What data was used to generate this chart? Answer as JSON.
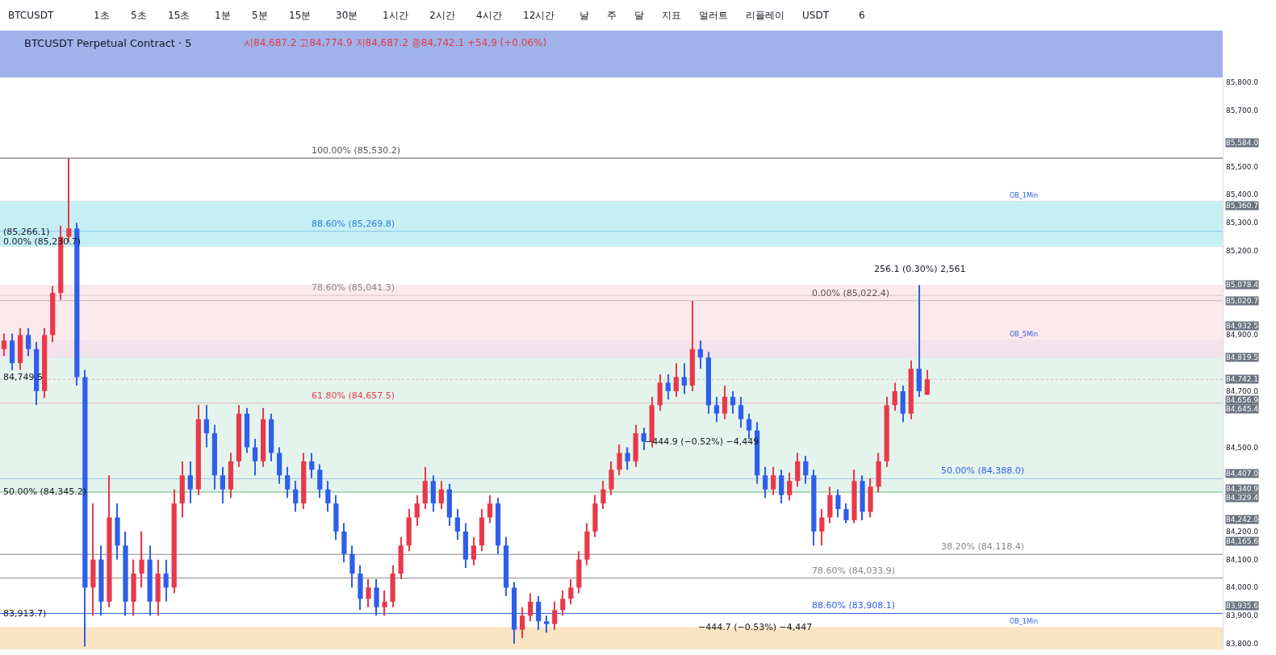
{
  "chart_data": {
    "type": "candlestick",
    "title": "BTCUSDT Perpetual Contract · 5",
    "subtitle": "시84,687.2 고84,774.9 저84,687.2 종84,742.1 +54.9 (+0.06%)",
    "categories": [
      null,
      null,
      null,
      null,
      null,
      null,
      null,
      null,
      null,
      null,
      null,
      null,
      null,
      null,
      null,
      null,
      null,
      null,
      null,
      null,
      null,
      null,
      null,
      null,
      null,
      null,
      null,
      null,
      null,
      null,
      null,
      null,
      null,
      null,
      null,
      null,
      null,
      null,
      null,
      null,
      null,
      null,
      null,
      null,
      null,
      null,
      null,
      null,
      null,
      null,
      null,
      null,
      null,
      null,
      null,
      null,
      null,
      null,
      null,
      null,
      null,
      null,
      null,
      null,
      null,
      null,
      null,
      null,
      null,
      null,
      null,
      null,
      null,
      null,
      null,
      null,
      null,
      null,
      null,
      null,
      null,
      null,
      null,
      null,
      null,
      null,
      null,
      null,
      null,
      null,
      null,
      null,
      null,
      null,
      null,
      null,
      null,
      null,
      null,
      null,
      null,
      null,
      null,
      null,
      null,
      null,
      null,
      null,
      null,
      null,
      null,
      null,
      null,
      null,
      null,
      null,
      null,
      null,
      null,
      null,
      null,
      null,
      null,
      null,
      null,
      null,
      null,
      null,
      null,
      null,
      null,
      null,
      null,
      null,
      null,
      null,
      null,
      null,
      null,
      null,
      null,
      null,
      null,
      null,
      null,
      null,
      null,
      null,
      null,
      null,
      null
    ],
    "ohlc": [
      [
        84850,
        84905,
        84825,
        84880
      ],
      [
        84880,
        84905,
        84775,
        84800
      ],
      [
        84800,
        84925,
        84775,
        84900
      ],
      [
        84900,
        84925,
        84825,
        84850
      ],
      [
        84850,
        84875,
        84650,
        84700
      ],
      [
        84700,
        84925,
        84675,
        84900
      ],
      [
        84900,
        85075,
        84875,
        85050
      ],
      [
        85050,
        85290,
        85025,
        85250
      ],
      [
        85250,
        85530,
        85230,
        85280
      ],
      [
        85280,
        85300,
        84720,
        84750
      ],
      [
        84750,
        84775,
        83790,
        84000
      ],
      [
        84000,
        84300,
        83900,
        84100
      ],
      [
        84100,
        84150,
        83900,
        83950
      ],
      [
        83950,
        84400,
        83930,
        84250
      ],
      [
        84250,
        84300,
        84100,
        84150
      ],
      [
        84150,
        84200,
        83900,
        83950
      ],
      [
        83950,
        84100,
        83900,
        84050
      ],
      [
        84050,
        84200,
        84000,
        84100
      ],
      [
        84100,
        84150,
        83900,
        83950
      ],
      [
        83950,
        84100,
        83900,
        84050
      ],
      [
        84050,
        84100,
        83950,
        84000
      ],
      [
        84000,
        84350,
        83980,
        84300
      ],
      [
        84300,
        84450,
        84250,
        84400
      ],
      [
        84400,
        84450,
        84300,
        84350
      ],
      [
        84350,
        84650,
        84330,
        84600
      ],
      [
        84600,
        84650,
        84500,
        84550
      ],
      [
        84550,
        84580,
        84350,
        84400
      ],
      [
        84400,
        84430,
        84300,
        84350
      ],
      [
        84350,
        84480,
        84320,
        84450
      ],
      [
        84450,
        84650,
        84430,
        84620
      ],
      [
        84620,
        84640,
        84480,
        84500
      ],
      [
        84500,
        84530,
        84400,
        84450
      ],
      [
        84450,
        84640,
        84430,
        84600
      ],
      [
        84600,
        84620,
        84450,
        84480
      ],
      [
        84480,
        84500,
        84370,
        84400
      ],
      [
        84400,
        84430,
        84320,
        84350
      ],
      [
        84350,
        84380,
        84270,
        84300
      ],
      [
        84300,
        84480,
        84280,
        84450
      ],
      [
        84450,
        84480,
        84390,
        84420
      ],
      [
        84420,
        84440,
        84320,
        84350
      ],
      [
        84350,
        84380,
        84270,
        84300
      ],
      [
        84300,
        84330,
        84170,
        84200
      ],
      [
        84200,
        84230,
        84090,
        84120
      ],
      [
        84120,
        84150,
        84000,
        84050
      ],
      [
        84050,
        84080,
        83920,
        83960
      ],
      [
        83960,
        84030,
        83930,
        84000
      ],
      [
        84000,
        84030,
        83900,
        83930
      ],
      [
        83930,
        83990,
        83900,
        83950
      ],
      [
        83950,
        84080,
        83930,
        84050
      ],
      [
        84050,
        84180,
        84030,
        84150
      ],
      [
        84150,
        84280,
        84130,
        84250
      ],
      [
        84250,
        84330,
        84220,
        84300
      ],
      [
        84300,
        84430,
        84280,
        84380
      ],
      [
        84380,
        84400,
        84270,
        84300
      ],
      [
        84300,
        84380,
        84280,
        84350
      ],
      [
        84350,
        84370,
        84220,
        84250
      ],
      [
        84250,
        84280,
        84170,
        84200
      ],
      [
        84200,
        84230,
        84070,
        84100
      ],
      [
        84100,
        84180,
        84080,
        84150
      ],
      [
        84150,
        84280,
        84130,
        84250
      ],
      [
        84250,
        84330,
        84230,
        84300
      ],
      [
        84300,
        84320,
        84120,
        84150
      ],
      [
        84150,
        84180,
        83970,
        84000
      ],
      [
        84000,
        84020,
        83800,
        83850
      ],
      [
        83850,
        83930,
        83820,
        83900
      ],
      [
        83900,
        83980,
        83880,
        83950
      ],
      [
        83950,
        83970,
        83850,
        83880
      ],
      [
        83880,
        83900,
        83840,
        83870
      ],
      [
        83870,
        83950,
        83850,
        83920
      ],
      [
        83920,
        83990,
        83900,
        83960
      ],
      [
        83960,
        84030,
        83940,
        84000
      ],
      [
        84000,
        84130,
        83980,
        84100
      ],
      [
        84100,
        84230,
        84080,
        84200
      ],
      [
        84200,
        84330,
        84180,
        84300
      ],
      [
        84300,
        84380,
        84280,
        84350
      ],
      [
        84350,
        84450,
        84330,
        84420
      ],
      [
        84420,
        84510,
        84400,
        84480
      ],
      [
        84480,
        84500,
        84420,
        84450
      ],
      [
        84450,
        84580,
        84430,
        84550
      ],
      [
        84550,
        84570,
        84490,
        84520
      ],
      [
        84520,
        84680,
        84500,
        84650
      ],
      [
        84650,
        84760,
        84630,
        84730
      ],
      [
        84730,
        84760,
        84670,
        84700
      ],
      [
        84700,
        84800,
        84680,
        84750
      ],
      [
        84750,
        84800,
        84690,
        84720
      ],
      [
        84720,
        85022,
        84700,
        84850
      ],
      [
        84850,
        84880,
        84780,
        84820
      ],
      [
        84820,
        84840,
        84620,
        84650
      ],
      [
        84650,
        84680,
        84590,
        84620
      ],
      [
        84620,
        84720,
        84600,
        84680
      ],
      [
        84680,
        84700,
        84620,
        84650
      ],
      [
        84650,
        84680,
        84570,
        84600
      ],
      [
        84600,
        84620,
        84530,
        84560
      ],
      [
        84560,
        84590,
        84370,
        84400
      ],
      [
        84400,
        84430,
        84320,
        84350
      ],
      [
        84350,
        84430,
        84330,
        84400
      ],
      [
        84400,
        84420,
        84300,
        84330
      ],
      [
        84330,
        84410,
        84310,
        84380
      ],
      [
        84380,
        84480,
        84360,
        84450
      ],
      [
        84450,
        84470,
        84370,
        84400
      ],
      [
        84400,
        84420,
        84150,
        84200
      ],
      [
        84200,
        84280,
        84150,
        84250
      ],
      [
        84250,
        84360,
        84230,
        84330
      ],
      [
        84330,
        84350,
        84250,
        84280
      ],
      [
        84280,
        84300,
        84230,
        84240
      ],
      [
        84240,
        84420,
        84230,
        84380
      ],
      [
        84380,
        84400,
        84240,
        84270
      ],
      [
        84270,
        84390,
        84250,
        84360
      ],
      [
        84360,
        84480,
        84340,
        84450
      ],
      [
        84450,
        84680,
        84430,
        84650
      ],
      [
        84650,
        84730,
        84630,
        84700
      ],
      [
        84700,
        84720,
        84590,
        84620
      ],
      [
        84620,
        84810,
        84600,
        84780
      ],
      [
        84780,
        85078,
        84680,
        84700
      ],
      [
        84687.2,
        84774.9,
        84687.2,
        84742.1
      ],
      null,
      null,
      null,
      null,
      null,
      null,
      null,
      null,
      null,
      null,
      null,
      null,
      null,
      null,
      null,
      null,
      null,
      null,
      null,
      null,
      null,
      null,
      null,
      null,
      null,
      null,
      null,
      null,
      null,
      null,
      null,
      null,
      null,
      null,
      null,
      null
    ],
    "colors": [
      "#e8394a",
      "#2f5fe8",
      "#e8394a",
      "#2f5fe8",
      "#2f5fe8",
      "#e8394a",
      "#e8394a",
      "#e8394a",
      "#e8394a",
      "#2f5fe8",
      "#2f5fe8",
      "#e8394a",
      "#2f5fe8",
      "#e8394a",
      "#2f5fe8",
      "#2f5fe8",
      "#e8394a",
      "#e8394a",
      "#2f5fe8",
      "#e8394a",
      "#2f5fe8",
      "#e8394a",
      "#e8394a",
      "#2f5fe8",
      "#e8394a",
      "#2f5fe8",
      "#2f5fe8",
      "#2f5fe8",
      "#e8394a",
      "#e8394a",
      "#2f5fe8",
      "#2f5fe8",
      "#e8394a",
      "#2f5fe8",
      "#2f5fe8",
      "#2f5fe8",
      "#2f5fe8",
      "#e8394a",
      "#2f5fe8",
      "#2f5fe8",
      "#2f5fe8",
      "#2f5fe8",
      "#2f5fe8",
      "#2f5fe8",
      "#2f5fe8",
      "#e8394a",
      "#2f5fe8",
      "#e8394a",
      "#e8394a",
      "#e8394a",
      "#e8394a",
      "#e8394a",
      "#e8394a",
      "#2f5fe8",
      "#e8394a",
      "#2f5fe8",
      "#2f5fe8",
      "#2f5fe8",
      "#e8394a",
      "#e8394a",
      "#e8394a",
      "#2f5fe8",
      "#2f5fe8",
      "#2f5fe8",
      "#e8394a",
      "#e8394a",
      "#2f5fe8",
      "#2f5fe8",
      "#e8394a",
      "#e8394a",
      "#e8394a",
      "#e8394a",
      "#e8394a",
      "#e8394a",
      "#e8394a",
      "#e8394a",
      "#e8394a",
      "#2f5fe8",
      "#e8394a",
      "#2f5fe8",
      "#e8394a",
      "#e8394a",
      "#2f5fe8",
      "#e8394a",
      "#2f5fe8",
      "#e8394a",
      "#2f5fe8",
      "#2f5fe8",
      "#2f5fe8",
      "#e8394a",
      "#2f5fe8",
      "#2f5fe8",
      "#2f5fe8",
      "#2f5fe8",
      "#2f5fe8",
      "#e8394a",
      "#2f5fe8",
      "#e8394a",
      "#e8394a",
      "#2f5fe8",
      "#2f5fe8",
      "#e8394a",
      "#e8394a",
      "#2f5fe8",
      "#2f5fe8",
      "#e8394a",
      "#2f5fe8",
      "#e8394a",
      "#e8394a",
      "#e8394a",
      "#e8394a",
      "#2f5fe8",
      "#e8394a",
      "#2f5fe8",
      "#e8394a",
      null,
      null,
      null,
      null,
      null,
      null,
      null,
      null,
      null,
      null,
      null,
      null,
      null,
      null,
      null,
      null,
      null,
      null,
      null,
      null,
      null,
      null,
      null,
      null,
      null,
      null,
      null,
      null,
      null,
      null,
      null,
      null,
      null,
      null,
      null,
      null
    ],
    "ylim": [
      83780,
      85815
    ],
    "yticks": [
      {
        "value": 83800,
        "label": "83,800.0"
      },
      {
        "value": 83900,
        "label": "83,900.0"
      },
      {
        "value": 84000,
        "label": "84,000.0"
      },
      {
        "value": 84100,
        "label": "84,100.0"
      },
      {
        "value": 84200,
        "label": "84,200.0"
      },
      {
        "value": 84500,
        "label": "84,500.0"
      },
      {
        "value": 84700,
        "label": "84,700.0"
      },
      {
        "value": 84900,
        "label": "84,900.0"
      },
      {
        "value": 85200,
        "label": "85,200.0"
      },
      {
        "value": 85300,
        "label": "85,300.0"
      },
      {
        "value": 85400,
        "label": "85,400.0"
      },
      {
        "value": 85500,
        "label": "85,500.0"
      },
      {
        "value": 85700,
        "label": "85,700.0"
      },
      {
        "value": 85800,
        "label": "85,800.0"
      },
      {
        "value": 85584.0,
        "label": "85,584.0"
      },
      {
        "value": 85360.7,
        "label": "85,360.7"
      },
      {
        "value": 85078.4,
        "label": "85,078.4"
      },
      {
        "value": 85020.7,
        "label": "85,020.7"
      },
      {
        "value": 84932.5,
        "label": "84,932.5"
      },
      {
        "value": 84819.5,
        "label": "84,819.5"
      },
      {
        "value": 84742.1,
        "label": "84,742.1"
      },
      {
        "value": 84656.9,
        "label": "84,656.9"
      },
      {
        "value": 84645.4,
        "label": "84,645.4"
      },
      {
        "value": 84407.0,
        "label": "84,407.0"
      },
      {
        "value": 84340.9,
        "label": "84,340.9"
      },
      {
        "value": 84329.4,
        "label": "84,329.4"
      },
      {
        "value": 84242.0,
        "label": "84,242.0"
      },
      {
        "value": 84165.6,
        "label": "84,165.6"
      },
      {
        "value": 83935.6,
        "label": "83,935.6"
      }
    ],
    "tick_labels": "y",
    "grid": false,
    "legend": false,
    "ref_lines": [
      {
        "axis": "y",
        "value": 85530.2,
        "label": "100.00% (85,530.2)",
        "color": "#555555"
      },
      {
        "axis": "y",
        "value": 85022.4,
        "label": "0.00% (85,022.4)",
        "color": "#555555"
      },
      {
        "axis": "y",
        "value": 84388.0,
        "label": "50.00% (84,388.0)",
        "color": "#2f5fe8"
      },
      {
        "axis": "y",
        "value": 85269.8,
        "label": "88.60% (85,269.8)",
        "color": "#2f7de1"
      },
      {
        "axis": "y",
        "value": 84033.9,
        "label": "78.60% (84,033.9)",
        "color": "#888888"
      },
      {
        "axis": "y",
        "value": 84118.4,
        "label": "38.20% (84,118.4)",
        "color": "#888888"
      },
      {
        "axis": "y",
        "value": 85041.3,
        "label": "78.60% (85,041.3)",
        "color": "#888888"
      },
      {
        "axis": "y",
        "value": 83908.1,
        "label": "88.60% (83,908.1)",
        "color": "#2f5fe8"
      },
      {
        "axis": "y",
        "value": 84742.1,
        "color": "#e8394a",
        "line_style": "dotted"
      },
      {
        "axis": "y",
        "value": 84657.5,
        "label": "61.80% (84,657.5)",
        "color": "#e8394a"
      },
      {
        "axis": "y",
        "value": 84340.9,
        "color": "#2e9e3e"
      }
    ],
    "bands": [
      {
        "axis": "y",
        "from": 85214,
        "to": 85378,
        "label": "OB_1Min",
        "color": "#aee8f0"
      },
      {
        "axis": "y",
        "from": 84815,
        "to": 84884,
        "label": "OB_5Min",
        "color": "#d6e4fa"
      },
      {
        "axis": "y",
        "from": 83780,
        "to": 83860,
        "label": "OB_1Min",
        "color": "#f9d9a8"
      },
      {
        "axis": "y",
        "from": 84819.5,
        "to": 85078.4,
        "color": "#fbe0e2"
      },
      {
        "axis": "y",
        "from": 84340.9,
        "to": 84819.5,
        "color": "#d9efe6"
      }
    ],
    "annotations": [
      "256.1 (0.30%) 2,561",
      "−444.9 (−0.52%) −4,449",
      "−444.7 (−0.53%) −4,447",
      "(85,266.1)",
      "0.00% (85,230.7)",
      "84,749.5",
      "50.00% (84,345.2)",
      "83,913.7)",
      "BTCUSDT",
      "1초",
      "5초",
      "15초",
      "1분",
      "5분",
      "15분",
      "30분",
      "1시간",
      "2시간",
      "4시간",
      "12시간",
      "날",
      "주",
      "달",
      "지표",
      "얼러트",
      "리플레이",
      "USDT",
      "6"
    ]
  }
}
